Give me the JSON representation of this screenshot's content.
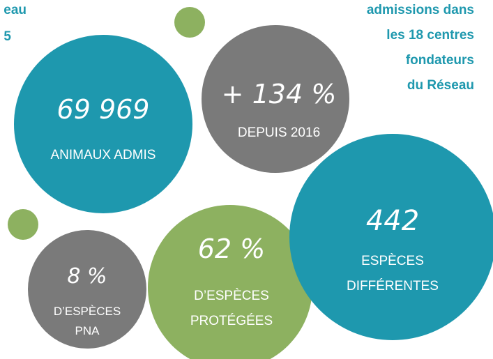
{
  "header": {
    "fragments": [
      "eau",
      "5"
    ]
  },
  "caption": {
    "lines": [
      "admissions dans",
      "les 18 centres",
      "fondateurs",
      "du Réseau"
    ]
  },
  "stats": [
    {
      "value": "69 969",
      "label_lines": [
        "ANIMAUX ADMIS"
      ]
    },
    {
      "value": "+ 134 %",
      "label_lines": [
        "DEPUIS 2016"
      ]
    },
    {
      "value": "442",
      "label_lines": [
        "ESPÈCES",
        "DIFFÉRENTES"
      ]
    },
    {
      "value": "62 %",
      "label_lines": [
        "D’ESPÈCES",
        "PROTÉGÉES"
      ]
    },
    {
      "value": "8 %",
      "label_lines": [
        "D’ESPÈCES",
        "PNA"
      ]
    }
  ]
}
